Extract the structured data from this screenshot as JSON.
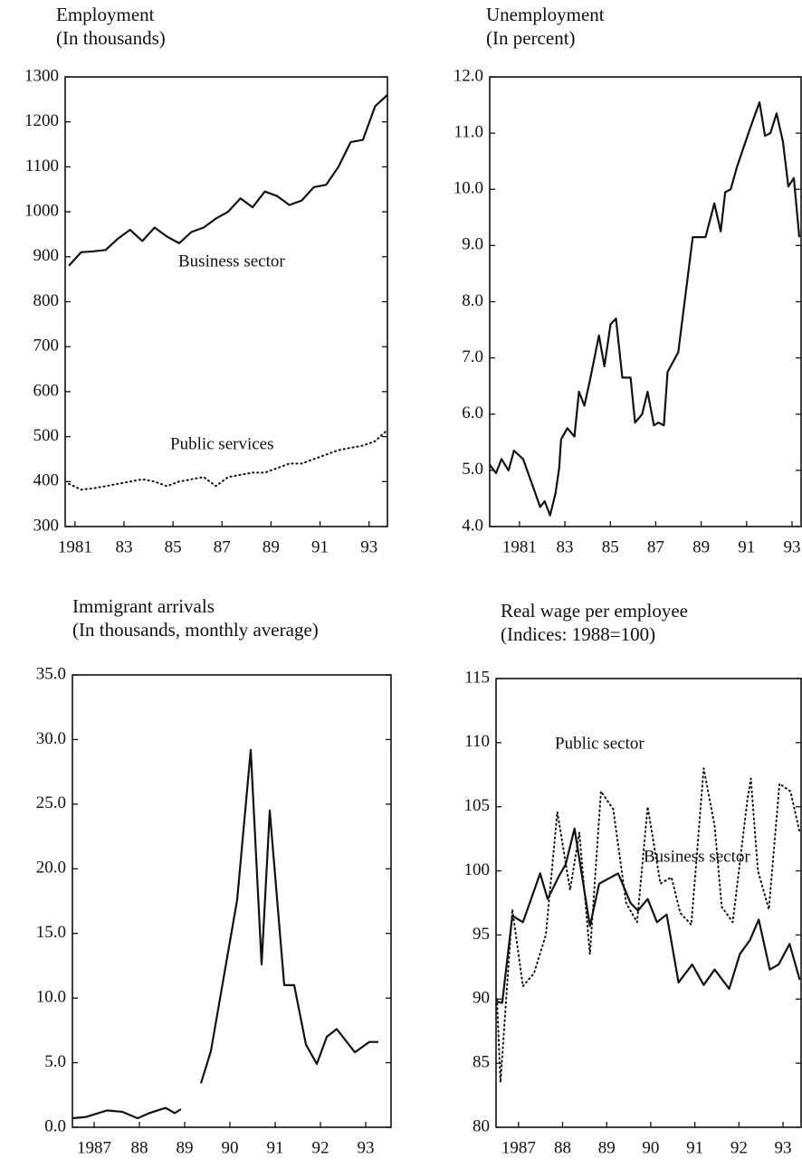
{
  "chart_data": [
    {
      "type": "line",
      "title": "Employment",
      "subtitle": "(In thousands)",
      "x": [
        1980.75,
        1981.25,
        1981.75,
        1982.25,
        1982.75,
        1983.25,
        1983.75,
        1984.25,
        1984.75,
        1985.25,
        1985.75,
        1986.25,
        1986.75,
        1987.25,
        1987.75,
        1988.25,
        1988.75,
        1989.25,
        1989.75,
        1990.25,
        1990.75,
        1991.25,
        1991.75,
        1992.25,
        1992.75,
        1993.25,
        1993.75
      ],
      "series": [
        {
          "name": "Business sector",
          "color": "#111111",
          "style": "solid",
          "values": [
            880,
            910,
            912,
            915,
            940,
            960,
            935,
            965,
            945,
            930,
            955,
            965,
            985,
            1000,
            1030,
            1010,
            1045,
            1035,
            1015,
            1025,
            1055,
            1060,
            1100,
            1155,
            1160,
            1235,
            1260
          ]
        },
        {
          "name": "Public services",
          "color": "#111111",
          "style": "dotted",
          "values": [
            395,
            382,
            385,
            390,
            395,
            400,
            405,
            400,
            390,
            400,
            405,
            410,
            390,
            410,
            415,
            420,
            420,
            430,
            440,
            440,
            450,
            460,
            470,
            475,
            480,
            490,
            515
          ]
        }
      ],
      "xlim": [
        1980.6,
        1993.75
      ],
      "xticks": [
        {
          "value": 1981,
          "label": "1981"
        },
        {
          "value": 1983,
          "label": "83"
        },
        {
          "value": 1985,
          "label": "85"
        },
        {
          "value": 1987,
          "label": "87"
        },
        {
          "value": 1989,
          "label": "89"
        },
        {
          "value": 1991,
          "label": "91"
        },
        {
          "value": 1993,
          "label": "93"
        }
      ],
      "ylim": [
        300,
        1300
      ],
      "yticks": [
        300,
        400,
        500,
        600,
        700,
        800,
        900,
        1000,
        1100,
        1200,
        1300
      ]
    },
    {
      "type": "line",
      "title": "Unemployment",
      "subtitle": "(In percent)",
      "x": [
        1979.69,
        1979.97,
        1980.21,
        1980.52,
        1980.76,
        1981.16,
        1981.56,
        1981.91,
        1982.11,
        1982.35,
        1982.59,
        1982.75,
        1982.83,
        1983.11,
        1983.42,
        1983.62,
        1983.86,
        1984.1,
        1984.5,
        1984.74,
        1985.01,
        1985.25,
        1985.53,
        1985.89,
        1986.09,
        1986.4,
        1986.64,
        1986.92,
        1987.12,
        1987.36,
        1987.52,
        1987.99,
        1988.63,
        1989.19,
        1989.58,
        1989.86,
        1990.06,
        1990.3,
        1990.58,
        1991.17,
        1991.57,
        1991.81,
        1992.05,
        1992.32,
        1992.6,
        1992.84,
        1993.08,
        1993.32
      ],
      "series": [
        {
          "name": "Unemployment rate",
          "color": "#111111",
          "style": "solid",
          "values": [
            5.1,
            4.95,
            5.2,
            5.0,
            5.35,
            5.2,
            4.75,
            4.35,
            4.45,
            4.2,
            4.6,
            5.05,
            5.55,
            5.75,
            5.6,
            6.4,
            6.15,
            6.6,
            7.4,
            6.85,
            7.6,
            7.7,
            6.65,
            6.65,
            5.85,
            6.0,
            6.4,
            5.8,
            5.85,
            5.8,
            6.75,
            7.1,
            9.15,
            9.15,
            9.75,
            9.25,
            9.95,
            10.0,
            10.4,
            11.1,
            11.55,
            10.95,
            11.0,
            11.35,
            10.85,
            10.05,
            10.2,
            9.15
          ]
        }
      ],
      "xlim": [
        1979.69,
        1993.4
      ],
      "xticks": [
        {
          "value": 1981,
          "label": "1981"
        },
        {
          "value": 1983,
          "label": "83"
        },
        {
          "value": 1985,
          "label": "85"
        },
        {
          "value": 1987,
          "label": "87"
        },
        {
          "value": 1989,
          "label": "89"
        },
        {
          "value": 1991,
          "label": "91"
        },
        {
          "value": 1993,
          "label": "93"
        }
      ],
      "ylim": [
        4,
        12
      ],
      "yticks": [
        {
          "value": 4,
          "label": "4.0"
        },
        {
          "value": 5,
          "label": "5.0"
        },
        {
          "value": 6,
          "label": "6.0"
        },
        {
          "value": 7,
          "label": "7.0"
        },
        {
          "value": 8,
          "label": "8.0"
        },
        {
          "value": 9,
          "label": "9.0"
        },
        {
          "value": 10,
          "label": "10.0"
        },
        {
          "value": 11,
          "label": "11.0"
        },
        {
          "value": 12,
          "label": "12.0"
        }
      ]
    },
    {
      "type": "line",
      "title": "Immigrant arrivals",
      "subtitle": "(In thousands, monthly average)",
      "x": [
        1986.52,
        1986.82,
        1987.28,
        1987.62,
        1987.96,
        1988.22,
        1988.58,
        1988.78,
        1988.92,
        1989.15,
        1989.36,
        1989.58,
        1990.16,
        1990.46,
        1990.7,
        1990.88,
        1991.2,
        1991.42,
        1991.68,
        1991.92,
        1992.14,
        1992.36,
        1992.76,
        1993.08,
        1993.28
      ],
      "series": [
        {
          "name": "Immigrant arrivals",
          "color": "#111111",
          "style": "solid",
          "values": [
            0.7,
            0.8,
            1.3,
            1.2,
            0.7,
            1.1,
            1.5,
            1.1,
            1.4,
            null,
            3.4,
            5.9,
            17.6,
            29.2,
            12.6,
            24.5,
            11.0,
            11.0,
            6.4,
            4.9,
            7.0,
            7.6,
            5.8,
            6.6,
            6.6
          ]
        }
      ],
      "xlim": [
        1986.52,
        1993.56
      ],
      "xticks": [
        {
          "value": 1987,
          "label": "1987"
        },
        {
          "value": 1988,
          "label": "88"
        },
        {
          "value": 1989,
          "label": "89"
        },
        {
          "value": 1990,
          "label": "90"
        },
        {
          "value": 1991,
          "label": "91"
        },
        {
          "value": 1992,
          "label": "92"
        },
        {
          "value": 1993,
          "label": "93"
        }
      ],
      "ylim": [
        0,
        35
      ],
      "yticks": [
        {
          "value": 0,
          "label": "0.0"
        },
        {
          "value": 5,
          "label": "5.0"
        },
        {
          "value": 10,
          "label": "10.0"
        },
        {
          "value": 15,
          "label": "15.0"
        },
        {
          "value": 20,
          "label": "20.0"
        },
        {
          "value": 25,
          "label": "25.0"
        },
        {
          "value": 30,
          "label": "30.0"
        },
        {
          "value": 35,
          "label": "35.0"
        }
      ]
    },
    {
      "type": "line",
      "title": "Real wage per employee",
      "subtitle": "(Indices: 1988=100)",
      "series": [
        {
          "name": "Public sector",
          "color": "#111111",
          "style": "dotted",
          "x": [
            1986.51,
            1986.59,
            1986.86,
            1987.1,
            1987.35,
            1987.62,
            1987.88,
            1988.17,
            1988.38,
            1988.62,
            1988.87,
            1989.15,
            1989.44,
            1989.69,
            1989.93,
            1990.22,
            1990.47,
            1990.67,
            1990.92,
            1991.2,
            1991.45,
            1991.61,
            1991.86,
            1992.19,
            1992.27,
            1992.43,
            1992.68,
            1992.92,
            1993.17,
            1993.38
          ],
          "values": [
            90,
            83.5,
            97,
            91,
            92,
            95,
            104.6,
            98.5,
            103,
            93.5,
            106.2,
            104.8,
            97.5,
            96,
            105,
            99,
            99.5,
            96.7,
            95.8,
            108,
            103.5,
            97.2,
            96,
            105.5,
            107.2,
            100,
            97,
            106.8,
            106.2,
            103
          ]
        },
        {
          "name": "Business sector",
          "color": "#111111",
          "style": "solid",
          "x": [
            1986.51,
            1986.63,
            1986.86,
            1987.1,
            1987.49,
            1987.66,
            1987.92,
            1988.07,
            1988.27,
            1988.62,
            1988.83,
            1989.26,
            1989.54,
            1989.71,
            1989.93,
            1990.14,
            1990.36,
            1990.63,
            1990.94,
            1991.2,
            1991.45,
            1991.78,
            1992.02,
            1992.25,
            1992.45,
            1992.7,
            1992.9,
            1993.15,
            1993.38
          ],
          "values": [
            89.8,
            89.7,
            96.5,
            96.0,
            99.8,
            97.8,
            99.6,
            100.5,
            103.3,
            95.7,
            99.0,
            99.8,
            97.5,
            96.9,
            97.8,
            96.0,
            96.6,
            91.3,
            92.7,
            91.1,
            92.3,
            90.8,
            93.5,
            94.6,
            96.2,
            92.3,
            92.7,
            94.3,
            91.5
          ]
        }
      ],
      "xlim": [
        1986.49,
        1993.41
      ],
      "xticks": [
        {
          "value": 1987,
          "label": "1987"
        },
        {
          "value": 1988,
          "label": "88"
        },
        {
          "value": 1989,
          "label": "89"
        },
        {
          "value": 1990,
          "label": "90"
        },
        {
          "value": 1991,
          "label": "91"
        },
        {
          "value": 1992,
          "label": "92"
        },
        {
          "value": 1993,
          "label": "93"
        }
      ],
      "ylim": [
        80,
        115
      ],
      "yticks": [
        80,
        85,
        90,
        95,
        100,
        105,
        110,
        115
      ]
    }
  ]
}
